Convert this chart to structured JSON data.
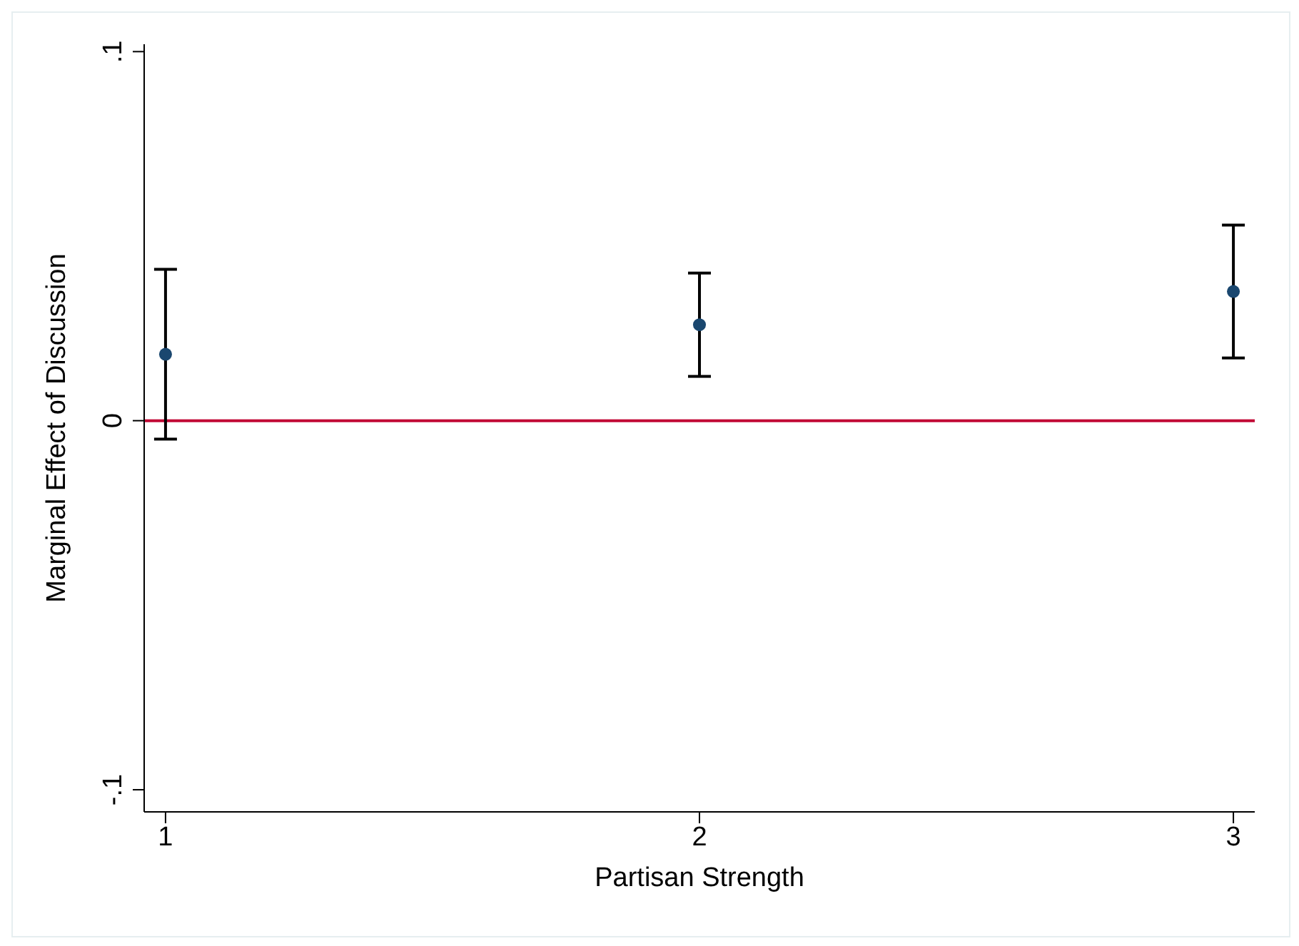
{
  "chart_data": {
    "type": "scatter",
    "xlabel": "Partisan Strength",
    "ylabel": "Marginal Effect of Discussion",
    "x": [
      1,
      2,
      3
    ],
    "values": [
      0.018,
      0.026,
      0.035
    ],
    "color": "#1a476f",
    "errors": [
      [
        -0.005,
        0.041
      ],
      [
        0.012,
        0.04
      ],
      [
        0.017,
        0.053
      ]
    ],
    "xlim": [
      0.96,
      3.04
    ],
    "xticks": [
      1,
      2,
      3
    ],
    "ylim": [
      -0.106,
      0.102
    ],
    "yticks": [
      {
        "value": -0.1,
        "label": "-.1"
      },
      0,
      {
        "value": 0.1,
        "label": ".1"
      }
    ],
    "ref_lines": [
      {
        "axis": "y",
        "value": 0,
        "color": "#c10534"
      }
    ],
    "marker": "circle",
    "grid": false,
    "legend": false
  }
}
